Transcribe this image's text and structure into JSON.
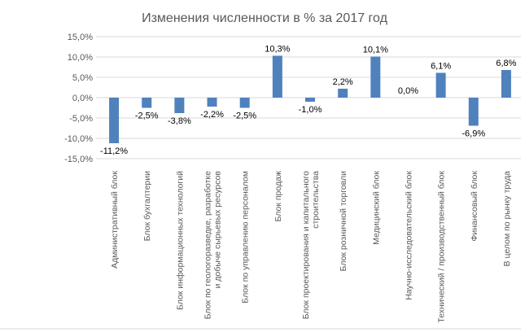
{
  "chart_data": {
    "type": "bar",
    "title": "Изменения численности в % за 2017 год",
    "categories": [
      "Административный блок",
      "Блок бухгалтерии",
      "Блок информационных технологий",
      "Блок по геологоразведке, разработке и добыче сырьевых ресурсов",
      "Блок по управлению персоналом",
      "Блок продаж",
      "Блок проектирования и капитального строительства",
      "Блок розничной торговли",
      "Медицинский блок",
      "Научно-исследовательский блок",
      "Технический / производственный блок",
      "Финансовый блок",
      "В целом по рынку труда"
    ],
    "values": [
      -11.2,
      -2.5,
      -3.8,
      -2.2,
      -2.5,
      10.3,
      -1.0,
      2.2,
      10.1,
      0.0,
      6.1,
      -6.9,
      6.8
    ],
    "data_labels": [
      "-11,2%",
      "-2,5%",
      "-3,8%",
      "-2,2%",
      "-2,5%",
      "10,3%",
      "-1,0%",
      "2,2%",
      "10,1%",
      "0,0%",
      "6,1%",
      "-6,9%",
      "6,8%"
    ],
    "yticks": [
      "15,0%",
      "10,0%",
      "5,0%",
      "0,0%",
      "-5,0%",
      "-10,0%",
      "-15,0%"
    ],
    "ytick_values": [
      15,
      10,
      5,
      0,
      -5,
      -10,
      -15
    ],
    "ylim": [
      -15,
      15
    ],
    "grid": true,
    "bar_color": "#4f81bd",
    "xlabel": "",
    "ylabel": ""
  }
}
